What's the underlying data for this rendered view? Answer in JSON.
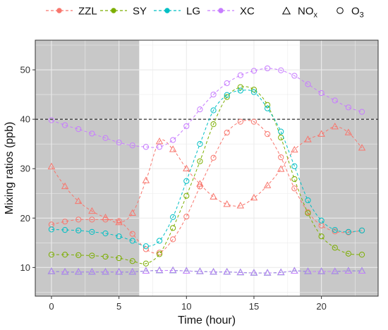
{
  "chart_data": {
    "type": "line",
    "xlabel": "Time (hour)",
    "ylabel": "Mixing ratios (ppb)",
    "xlim": [
      -1.2,
      24.2
    ],
    "ylim": [
      4.2,
      56
    ],
    "x_ticks": [
      0,
      5,
      10,
      15,
      20
    ],
    "y_ticks": [
      10,
      20,
      30,
      40,
      50
    ],
    "reference_line": {
      "y": 40,
      "style": "dashed"
    },
    "shaded_periods": [
      [
        -1.2,
        6.5
      ],
      [
        18.4,
        24.2
      ]
    ],
    "grid": true,
    "legend_position": "top",
    "x": [
      0,
      1,
      2,
      3,
      4,
      5,
      6,
      7,
      8,
      9,
      10,
      11,
      12,
      13,
      14,
      15,
      16,
      17,
      18,
      19,
      20,
      21,
      22,
      23
    ],
    "series": [
      {
        "name": "ZZL",
        "color": "#F8766D",
        "O3": [
          18.7,
          19.3,
          19.7,
          19.7,
          19.7,
          19.4,
          16.8,
          13.7,
          13.0,
          15.7,
          20.3,
          26.4,
          32.2,
          37.3,
          39.5,
          39.5,
          37.0,
          32.3,
          26.0,
          21.2,
          18.5,
          17.3,
          17.1,
          17.5
        ],
        "NOx": [
          30.4,
          26.4,
          23.4,
          21.4,
          20.1,
          19.1,
          21.0,
          27.6,
          35.5,
          33.9,
          30.0,
          26.9,
          24.3,
          22.8,
          22.5,
          24.1,
          26.6,
          29.9,
          33.8,
          35.9,
          37.0,
          38.5,
          37.3,
          34.2
        ]
      },
      {
        "name": "SY",
        "color": "#7CAE00",
        "O3": [
          12.6,
          12.6,
          12.5,
          12.4,
          12.2,
          11.9,
          11.3,
          10.8,
          12.7,
          18.0,
          24.5,
          31.5,
          39.0,
          44.5,
          46.5,
          46.0,
          42.9,
          36.3,
          27.9,
          21.0,
          16.3,
          14.0,
          12.8,
          12.6
        ],
        "NOx": [
          9.2,
          9.1,
          9.1,
          9.1,
          9.1,
          9.1,
          9.1,
          9.3,
          9.4,
          9.4,
          9.3,
          9.2,
          9.1,
          9.1,
          9.0,
          8.9,
          8.9,
          9.0,
          9.3,
          9.2,
          9.2,
          9.2,
          9.3,
          9.3
        ]
      },
      {
        "name": "LG",
        "color": "#00BFC4",
        "O3": [
          17.7,
          17.6,
          17.5,
          17.2,
          16.9,
          16.3,
          15.4,
          14.3,
          15.4,
          20.2,
          27.5,
          35.0,
          41.8,
          44.9,
          45.8,
          45.5,
          42.2,
          37.5,
          30.5,
          23.6,
          19.5,
          17.6,
          17.2,
          17.5
        ],
        "NOx": [
          9.2,
          9.1,
          9.1,
          9.1,
          9.1,
          9.1,
          9.1,
          9.3,
          9.4,
          9.4,
          9.3,
          9.2,
          9.1,
          9.1,
          9.0,
          8.9,
          8.9,
          9.0,
          9.3,
          9.2,
          9.2,
          9.2,
          9.3,
          9.3
        ]
      },
      {
        "name": "XC",
        "color": "#C77CFF",
        "O3": [
          39.8,
          38.8,
          38.0,
          37.1,
          36.2,
          35.3,
          34.7,
          34.4,
          34.4,
          35.8,
          38.6,
          42.0,
          45.0,
          47.3,
          48.9,
          49.8,
          50.3,
          49.9,
          48.8,
          47.1,
          45.3,
          43.8,
          42.4,
          41.5
        ],
        "NOx": [
          9.2,
          9.1,
          9.1,
          9.1,
          9.1,
          9.1,
          9.1,
          9.3,
          9.4,
          9.4,
          9.3,
          9.2,
          9.1,
          9.1,
          9.0,
          8.9,
          8.9,
          9.0,
          9.3,
          9.2,
          9.2,
          9.2,
          9.3,
          9.3
        ]
      }
    ],
    "shape_legend": [
      {
        "shape": "triangle",
        "label": "NO",
        "subscript": "x"
      },
      {
        "shape": "circle",
        "label": "O",
        "subscript": "3"
      }
    ]
  }
}
